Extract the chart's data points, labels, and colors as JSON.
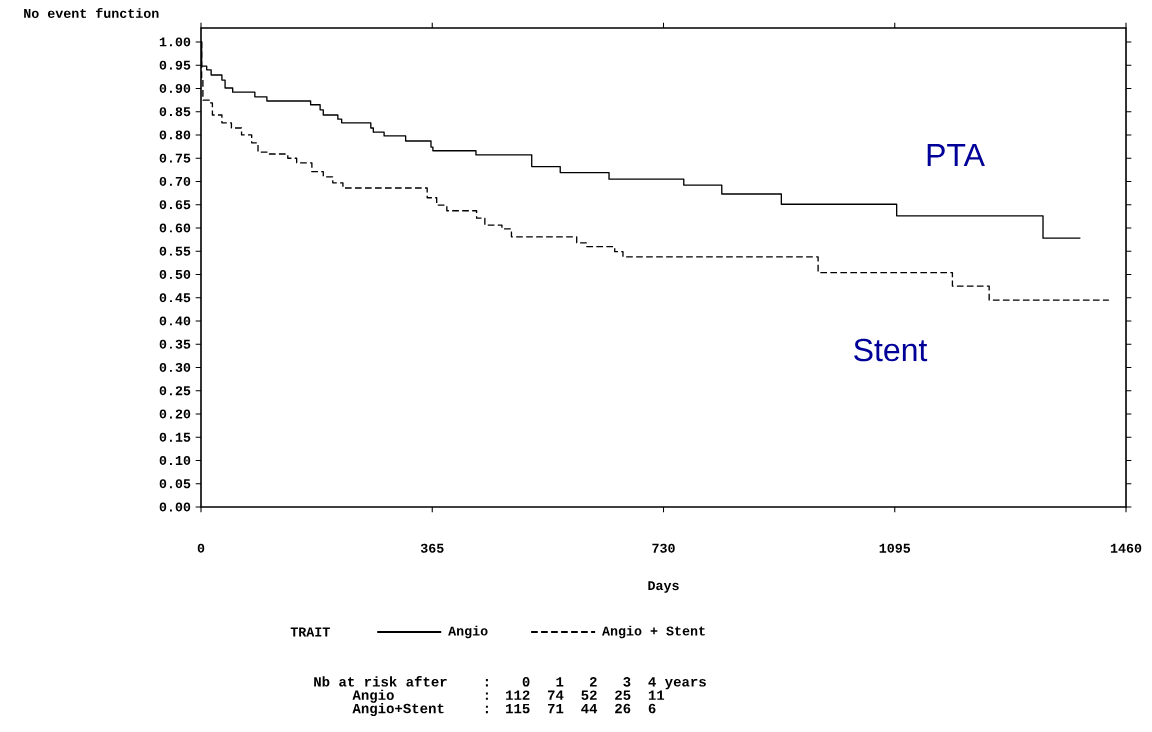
{
  "chart_data": {
    "type": "step",
    "ylabel": "No event function",
    "xlabel": "Days",
    "legend_title": "TRAIT",
    "legend": "bottom",
    "xlim": [
      0,
      1460
    ],
    "xticks": [
      0,
      365,
      730,
      1095,
      1460
    ],
    "ylim": [
      0,
      1.03
    ],
    "yticks": [
      {
        "value": 0,
        "label": "0.00"
      },
      {
        "value": 0.05,
        "label": "0.05"
      },
      {
        "value": 0.1,
        "label": "0.10"
      },
      {
        "value": 0.15,
        "label": "0.15"
      },
      {
        "value": 0.2,
        "label": "0.20"
      },
      {
        "value": 0.25,
        "label": "0.25"
      },
      {
        "value": 0.3,
        "label": "0.30"
      },
      {
        "value": 0.35,
        "label": "0.35"
      },
      {
        "value": 0.4,
        "label": "0.40"
      },
      {
        "value": 0.45,
        "label": "0.45"
      },
      {
        "value": 0.5,
        "label": "0.50"
      },
      {
        "value": 0.55,
        "label": "0.55"
      },
      {
        "value": 0.6,
        "label": "0.60"
      },
      {
        "value": 0.65,
        "label": "0.65"
      },
      {
        "value": 0.7,
        "label": "0.70"
      },
      {
        "value": 0.75,
        "label": "0.75"
      },
      {
        "value": 0.8,
        "label": "0.80"
      },
      {
        "value": 0.85,
        "label": "0.85"
      },
      {
        "value": 0.9,
        "label": "0.90"
      },
      {
        "value": 0.95,
        "label": "0.95"
      },
      {
        "value": 1,
        "label": "1.00"
      }
    ],
    "marker": "none",
    "series": [
      {
        "name": "Angio",
        "color": "#000000",
        "line_style": "solid",
        "x": [
          0,
          1,
          9,
          16,
          33,
          38,
          50,
          85,
          104,
          173,
          188,
          193,
          216,
          222,
          268,
          272,
          289,
          323,
          363,
          366,
          434,
          522,
          567,
          644,
          762,
          822,
          916,
          1098,
          1329,
          1388
        ],
        "values": [
          1.0,
          0.948,
          0.94,
          0.929,
          0.918,
          0.901,
          0.892,
          0.882,
          0.873,
          0.865,
          0.854,
          0.843,
          0.834,
          0.826,
          0.815,
          0.806,
          0.798,
          0.787,
          0.774,
          0.766,
          0.757,
          0.732,
          0.719,
          0.705,
          0.692,
          0.673,
          0.651,
          0.626,
          0.578,
          0.578
        ]
      },
      {
        "name": "Angio + Stent",
        "color": "#000000",
        "line_style": "dashed",
        "x": [
          0,
          1,
          3,
          13,
          18,
          33,
          48,
          64,
          80,
          90,
          106,
          137,
          151,
          175,
          193,
          208,
          224,
          357,
          372,
          388,
          435,
          448,
          475,
          490,
          593,
          609,
          653,
          666,
          974,
          1186,
          1244,
          1433
        ],
        "values": [
          1.0,
          0.92,
          0.875,
          0.869,
          0.843,
          0.826,
          0.815,
          0.8,
          0.783,
          0.763,
          0.759,
          0.75,
          0.74,
          0.721,
          0.71,
          0.697,
          0.686,
          0.665,
          0.649,
          0.637,
          0.621,
          0.606,
          0.598,
          0.581,
          0.568,
          0.56,
          0.549,
          0.538,
          0.504,
          0.475,
          0.445,
          0.445
        ]
      }
    ],
    "annotations": [
      "PTA",
      "Stent",
      "Nb at risk after",
      ":",
      "0",
      "1",
      "2",
      "3",
      "4 years",
      "Angio",
      ":",
      "112",
      "74",
      "52",
      "25",
      "11",
      "Angio+Stent",
      ":",
      "115",
      "71",
      "44",
      "26",
      "6"
    ]
  }
}
